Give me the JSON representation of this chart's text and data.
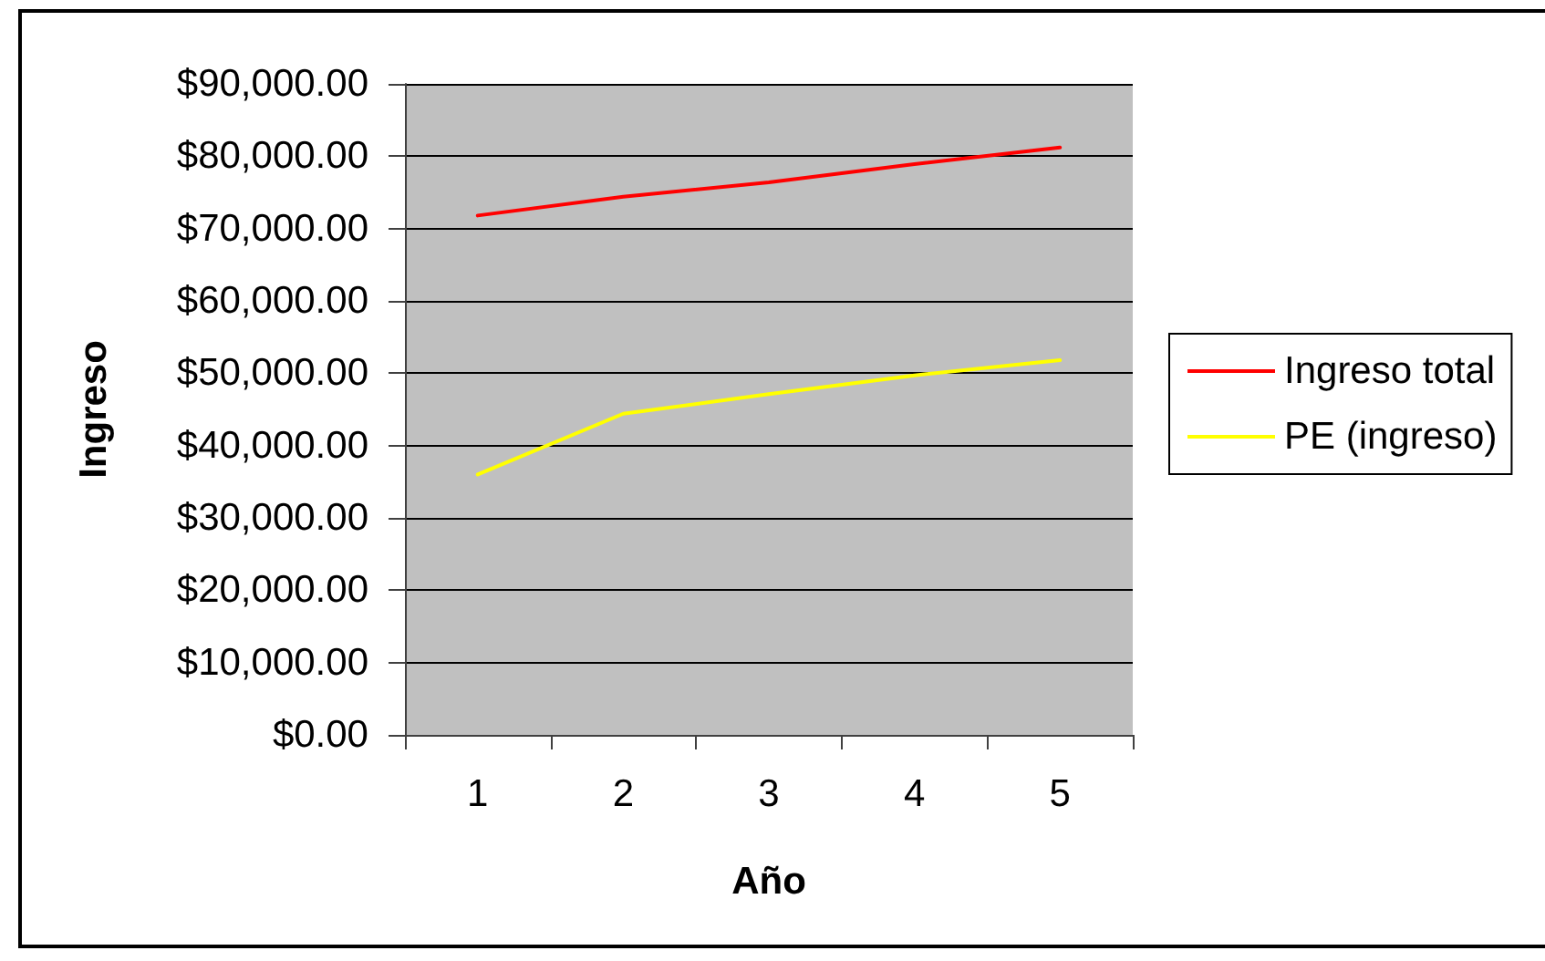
{
  "chart_data": {
    "type": "line",
    "xlabel": "Año",
    "ylabel": "Ingreso",
    "categories": [
      "1",
      "2",
      "3",
      "4",
      "5"
    ],
    "series": [
      {
        "name": "Ingreso total",
        "color": "#ff0000",
        "values": [
          71800,
          74400,
          76400,
          78900,
          81200
        ]
      },
      {
        "name": "PE (ingreso)",
        "color": "#ffff00",
        "values": [
          36000,
          44400,
          47100,
          49700,
          51800
        ]
      }
    ],
    "ylim": [
      0,
      90000
    ],
    "yticks": [
      {
        "value": 0,
        "label": "$0.00"
      },
      {
        "value": 10000,
        "label": "$10,000.00"
      },
      {
        "value": 20000,
        "label": "$20,000.00"
      },
      {
        "value": 30000,
        "label": "$30,000.00"
      },
      {
        "value": 40000,
        "label": "$40,000.00"
      },
      {
        "value": 50000,
        "label": "$50,000.00"
      },
      {
        "value": 60000,
        "label": "$60,000.00"
      },
      {
        "value": 70000,
        "label": "$70,000.00"
      },
      {
        "value": 80000,
        "label": "$80,000.00"
      },
      {
        "value": 90000,
        "label": "$90,000.00"
      }
    ],
    "grid": "y",
    "legend": "right",
    "marker": "none",
    "line_style": "solid"
  }
}
